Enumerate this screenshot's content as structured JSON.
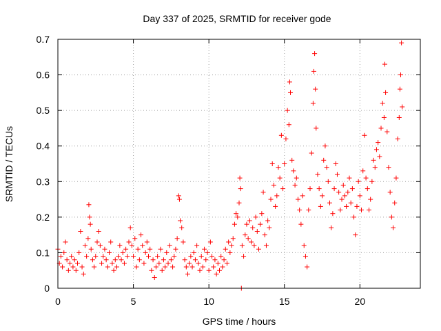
{
  "chart_data": {
    "type": "scatter",
    "title": "Day 337 of 2025, SRMTID for receiver gode",
    "xlabel": "GPS time / hours",
    "ylabel": "SRMTID / TECUs",
    "xlim": [
      0,
      24
    ],
    "ylim": [
      0,
      0.7
    ],
    "xticks": [
      "0",
      "5",
      "10",
      "15",
      "20"
    ],
    "yticks": [
      "0",
      "0.1",
      "0.2",
      "0.3",
      "0.4",
      "0.5",
      "0.6",
      "0.7"
    ],
    "grid": true,
    "marker": "plus",
    "series": [
      {
        "name": "SRMTID",
        "color": "#ff0000",
        "points": [
          [
            0.0,
            0.11
          ],
          [
            0.1,
            0.07
          ],
          [
            0.2,
            0.09
          ],
          [
            0.3,
            0.06
          ],
          [
            0.4,
            0.1
          ],
          [
            0.5,
            0.13
          ],
          [
            0.6,
            0.08
          ],
          [
            0.7,
            0.05
          ],
          [
            0.8,
            0.07
          ],
          [
            0.9,
            0.09
          ],
          [
            1.0,
            0.06
          ],
          [
            1.1,
            0.08
          ],
          [
            1.2,
            0.05
          ],
          [
            1.3,
            0.07
          ],
          [
            1.4,
            0.1
          ],
          [
            1.5,
            0.16
          ],
          [
            1.6,
            0.06
          ],
          [
            1.7,
            0.04
          ],
          [
            1.8,
            0.12
          ],
          [
            1.9,
            0.09
          ],
          [
            2.0,
            0.14
          ],
          [
            2.05,
            0.235
          ],
          [
            2.1,
            0.2
          ],
          [
            2.15,
            0.18
          ],
          [
            2.2,
            0.11
          ],
          [
            2.3,
            0.08
          ],
          [
            2.4,
            0.06
          ],
          [
            2.5,
            0.09
          ],
          [
            2.6,
            0.13
          ],
          [
            2.7,
            0.16
          ],
          [
            2.8,
            0.12
          ],
          [
            2.9,
            0.07
          ],
          [
            3.0,
            0.09
          ],
          [
            3.1,
            0.11
          ],
          [
            3.2,
            0.08
          ],
          [
            3.3,
            0.06
          ],
          [
            3.4,
            0.1
          ],
          [
            3.5,
            0.13
          ],
          [
            3.6,
            0.07
          ],
          [
            3.7,
            0.05
          ],
          [
            3.8,
            0.08
          ],
          [
            3.9,
            0.06
          ],
          [
            4.0,
            0.09
          ],
          [
            4.1,
            0.12
          ],
          [
            4.2,
            0.08
          ],
          [
            4.3,
            0.1
          ],
          [
            4.4,
            0.07
          ],
          [
            4.5,
            0.11
          ],
          [
            4.6,
            0.09
          ],
          [
            4.7,
            0.13
          ],
          [
            4.8,
            0.17
          ],
          [
            4.9,
            0.12
          ],
          [
            5.0,
            0.09
          ],
          [
            5.1,
            0.14
          ],
          [
            5.2,
            0.06
          ],
          [
            5.3,
            0.11
          ],
          [
            5.4,
            0.08
          ],
          [
            5.5,
            0.15
          ],
          [
            5.6,
            0.12
          ],
          [
            5.7,
            0.07
          ],
          [
            5.8,
            0.1
          ],
          [
            5.9,
            0.13
          ],
          [
            6.0,
            0.09
          ],
          [
            6.1,
            0.11
          ],
          [
            6.2,
            0.05
          ],
          [
            6.3,
            0.08
          ],
          [
            6.4,
            0.03
          ],
          [
            6.5,
            0.06
          ],
          [
            6.6,
            0.09
          ],
          [
            6.7,
            0.07
          ],
          [
            6.8,
            0.11
          ],
          [
            6.9,
            0.05
          ],
          [
            7.0,
            0.08
          ],
          [
            7.1,
            0.06
          ],
          [
            7.2,
            0.1
          ],
          [
            7.3,
            0.07
          ],
          [
            7.4,
            0.12
          ],
          [
            7.5,
            0.08
          ],
          [
            7.6,
            0.06
          ],
          [
            7.7,
            0.09
          ],
          [
            7.8,
            0.11
          ],
          [
            7.9,
            0.14
          ],
          [
            8.0,
            0.26
          ],
          [
            8.05,
            0.25
          ],
          [
            8.1,
            0.19
          ],
          [
            8.2,
            0.17
          ],
          [
            8.3,
            0.13
          ],
          [
            8.4,
            0.08
          ],
          [
            8.5,
            0.06
          ],
          [
            8.6,
            0.04
          ],
          [
            8.7,
            0.07
          ],
          [
            8.8,
            0.09
          ],
          [
            8.9,
            0.06
          ],
          [
            9.0,
            0.1
          ],
          [
            9.1,
            0.08
          ],
          [
            9.2,
            0.12
          ],
          [
            9.3,
            0.07
          ],
          [
            9.4,
            0.05
          ],
          [
            9.5,
            0.09
          ],
          [
            9.6,
            0.06
          ],
          [
            9.7,
            0.11
          ],
          [
            9.8,
            0.08
          ],
          [
            9.9,
            0.1
          ],
          [
            10.0,
            0.05
          ],
          [
            10.1,
            0.13
          ],
          [
            10.2,
            0.09
          ],
          [
            10.3,
            0.06
          ],
          [
            10.4,
            0.08
          ],
          [
            10.5,
            0.04
          ],
          [
            10.6,
            0.07
          ],
          [
            10.7,
            0.05
          ],
          [
            10.8,
            0.09
          ],
          [
            10.9,
            0.06
          ],
          [
            11.0,
            0.08
          ],
          [
            11.1,
            0.11
          ],
          [
            11.2,
            0.07
          ],
          [
            11.3,
            0.13
          ],
          [
            11.4,
            0.1
          ],
          [
            11.5,
            0.12
          ],
          [
            11.6,
            0.14
          ],
          [
            11.7,
            0.18
          ],
          [
            11.8,
            0.21
          ],
          [
            11.9,
            0.2
          ],
          [
            12.0,
            0.24
          ],
          [
            12.05,
            0.31
          ],
          [
            12.1,
            0.28
          ],
          [
            12.15,
            0.0
          ],
          [
            12.2,
            0.12
          ],
          [
            12.3,
            0.09
          ],
          [
            12.4,
            0.15
          ],
          [
            12.5,
            0.18
          ],
          [
            12.6,
            0.14
          ],
          [
            12.7,
            0.19
          ],
          [
            12.8,
            0.13
          ],
          [
            12.9,
            0.17
          ],
          [
            13.0,
            0.12
          ],
          [
            13.1,
            0.2
          ],
          [
            13.2,
            0.16
          ],
          [
            13.3,
            0.11
          ],
          [
            13.4,
            0.18
          ],
          [
            13.5,
            0.21
          ],
          [
            13.6,
            0.27
          ],
          [
            13.7,
            0.15
          ],
          [
            13.8,
            0.12
          ],
          [
            13.9,
            0.19
          ],
          [
            14.0,
            0.17
          ],
          [
            14.1,
            0.25
          ],
          [
            14.2,
            0.35
          ],
          [
            14.3,
            0.29
          ],
          [
            14.4,
            0.23
          ],
          [
            14.5,
            0.26
          ],
          [
            14.6,
            0.34
          ],
          [
            14.7,
            0.31
          ],
          [
            14.8,
            0.43
          ],
          [
            14.9,
            0.28
          ],
          [
            15.0,
            0.35
          ],
          [
            15.1,
            0.42
          ],
          [
            15.2,
            0.5
          ],
          [
            15.3,
            0.46
          ],
          [
            15.35,
            0.58
          ],
          [
            15.4,
            0.55
          ],
          [
            15.5,
            0.36
          ],
          [
            15.6,
            0.33
          ],
          [
            15.7,
            0.29
          ],
          [
            15.8,
            0.31
          ],
          [
            15.9,
            0.25
          ],
          [
            16.0,
            0.22
          ],
          [
            16.1,
            0.18
          ],
          [
            16.2,
            0.26
          ],
          [
            16.3,
            0.12
          ],
          [
            16.4,
            0.09
          ],
          [
            16.5,
            0.06
          ],
          [
            16.6,
            0.22
          ],
          [
            16.7,
            0.28
          ],
          [
            16.8,
            0.38
          ],
          [
            16.9,
            0.52
          ],
          [
            16.95,
            0.61
          ],
          [
            17.0,
            0.66
          ],
          [
            17.05,
            0.56
          ],
          [
            17.1,
            0.45
          ],
          [
            17.2,
            0.32
          ],
          [
            17.3,
            0.28
          ],
          [
            17.4,
            0.23
          ],
          [
            17.5,
            0.26
          ],
          [
            17.6,
            0.36
          ],
          [
            17.7,
            0.4
          ],
          [
            17.8,
            0.34
          ],
          [
            17.9,
            0.3
          ],
          [
            18.0,
            0.24
          ],
          [
            18.1,
            0.17
          ],
          [
            18.2,
            0.21
          ],
          [
            18.3,
            0.28
          ],
          [
            18.4,
            0.35
          ],
          [
            18.5,
            0.32
          ],
          [
            18.6,
            0.27
          ],
          [
            18.7,
            0.22
          ],
          [
            18.8,
            0.25
          ],
          [
            18.9,
            0.29
          ],
          [
            19.0,
            0.26
          ],
          [
            19.1,
            0.23
          ],
          [
            19.2,
            0.27
          ],
          [
            19.3,
            0.31
          ],
          [
            19.4,
            0.24
          ],
          [
            19.5,
            0.28
          ],
          [
            19.6,
            0.2
          ],
          [
            19.7,
            0.15
          ],
          [
            19.8,
            0.23
          ],
          [
            19.9,
            0.3
          ],
          [
            20.0,
            0.26
          ],
          [
            20.1,
            0.22
          ],
          [
            20.2,
            0.33
          ],
          [
            20.3,
            0.43
          ],
          [
            20.4,
            0.31
          ],
          [
            20.5,
            0.28
          ],
          [
            20.6,
            0.22
          ],
          [
            20.7,
            0.25
          ],
          [
            20.8,
            0.3
          ],
          [
            20.9,
            0.36
          ],
          [
            21.0,
            0.34
          ],
          [
            21.1,
            0.39
          ],
          [
            21.2,
            0.41
          ],
          [
            21.3,
            0.37
          ],
          [
            21.4,
            0.45
          ],
          [
            21.5,
            0.52
          ],
          [
            21.6,
            0.48
          ],
          [
            21.65,
            0.63
          ],
          [
            21.7,
            0.55
          ],
          [
            21.8,
            0.44
          ],
          [
            21.9,
            0.34
          ],
          [
            22.0,
            0.27
          ],
          [
            22.1,
            0.2
          ],
          [
            22.2,
            0.17
          ],
          [
            22.3,
            0.24
          ],
          [
            22.4,
            0.31
          ],
          [
            22.5,
            0.42
          ],
          [
            22.6,
            0.48
          ],
          [
            22.65,
            0.56
          ],
          [
            22.7,
            0.6
          ],
          [
            22.75,
            0.69
          ],
          [
            22.8,
            0.51
          ]
        ]
      }
    ]
  }
}
